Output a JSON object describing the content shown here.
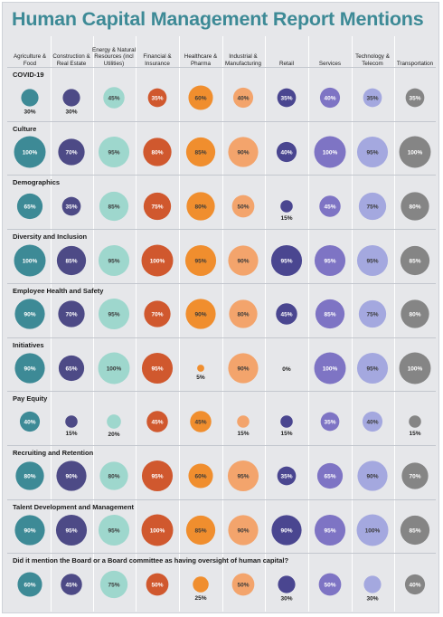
{
  "chart_data": {
    "type": "bubble-matrix",
    "title": "Human Capital Management Report Mentions",
    "categories": [
      "Agriculture & Food",
      "Construction & Real Estate",
      "Energy & Natural Resources (incl Utilities)",
      "Financial & Insurance",
      "Healthcare & Pharma",
      "Industrial & Manufacturing",
      "Retail",
      "Services",
      "Technology & Telecom",
      "Transportation"
    ],
    "category_colors": [
      "#3d8a96",
      "#4d4a86",
      "#9ed7cd",
      "#d0582e",
      "#f08e2e",
      "#f3a46c",
      "#4a4690",
      "#7e74c4",
      "#a4a8df",
      "#858585"
    ],
    "unit": "%",
    "series": [
      {
        "name": "COVID-19",
        "values": [
          30,
          30,
          45,
          35,
          60,
          40,
          35,
          40,
          35,
          35
        ]
      },
      {
        "name": "Culture",
        "values": [
          100,
          70,
          95,
          80,
          85,
          90,
          40,
          100,
          95,
          100
        ]
      },
      {
        "name": "Demographics",
        "values": [
          65,
          35,
          85,
          75,
          80,
          50,
          15,
          45,
          75,
          80
        ]
      },
      {
        "name": "Diversity and Inclusion",
        "values": [
          100,
          85,
          95,
          100,
          95,
          90,
          95,
          95,
          95,
          85
        ]
      },
      {
        "name": "Employee Health and Safety",
        "values": [
          90,
          70,
          95,
          70,
          90,
          80,
          45,
          85,
          75,
          80
        ]
      },
      {
        "name": "Initiatives",
        "values": [
          90,
          65,
          100,
          95,
          5,
          90,
          0,
          100,
          95,
          100
        ]
      },
      {
        "name": "Pay Equity",
        "values": [
          40,
          15,
          20,
          45,
          45,
          15,
          15,
          35,
          40,
          15
        ]
      },
      {
        "name": "Recruiting and Retention",
        "values": [
          80,
          90,
          80,
          95,
          60,
          95,
          35,
          65,
          90,
          70
        ]
      },
      {
        "name": "Talent Development and Management",
        "values": [
          90,
          95,
          95,
          100,
          85,
          90,
          90,
          95,
          100,
          85
        ]
      },
      {
        "name": "Did it mention the Board or a Board committee as having oversight of human capital?",
        "values": [
          60,
          45,
          75,
          50,
          25,
          50,
          30,
          50,
          30,
          40
        ]
      }
    ]
  }
}
